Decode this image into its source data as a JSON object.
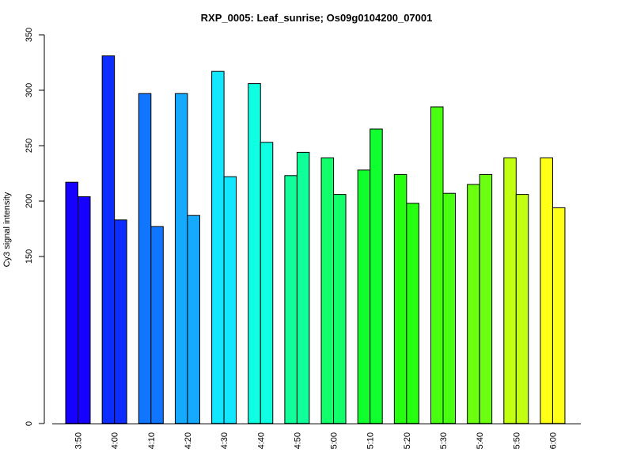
{
  "chart_data": {
    "type": "bar",
    "title": "RXP_0005: Leaf_sunrise; Os09g0104200_07001",
    "xlabel": "",
    "ylabel": "Cy3 signal intensity",
    "ylim": [
      0,
      350
    ],
    "yticks": [
      "0",
      "150",
      "200",
      "250",
      "300",
      "350"
    ],
    "categories": [
      "3:50",
      "4:00",
      "4:10",
      "4:20",
      "4:30",
      "4:40",
      "4:50",
      "5:00",
      "5:10",
      "5:20",
      "5:30",
      "5:40",
      "5:50",
      "6:00"
    ],
    "series": [
      {
        "values": [
          217,
          331,
          297,
          297,
          317,
          306,
          223,
          239,
          228,
          224,
          285,
          215,
          239,
          239
        ]
      },
      {
        "values": [
          204,
          183,
          177,
          187,
          222,
          253,
          244,
          206,
          265,
          198,
          207,
          224,
          206,
          194
        ]
      }
    ],
    "colors": [
      "#1600ff",
      "#0d2dff",
      "#1075ff",
      "#16aaff",
      "#13e6ff",
      "#10ffe3",
      "#10ff9b",
      "#10ff6a",
      "#10ff2e",
      "#27ff10",
      "#48ff10",
      "#6cff10",
      "#c3ff10",
      "#ffff18"
    ],
    "grid": false,
    "legend": "none"
  }
}
